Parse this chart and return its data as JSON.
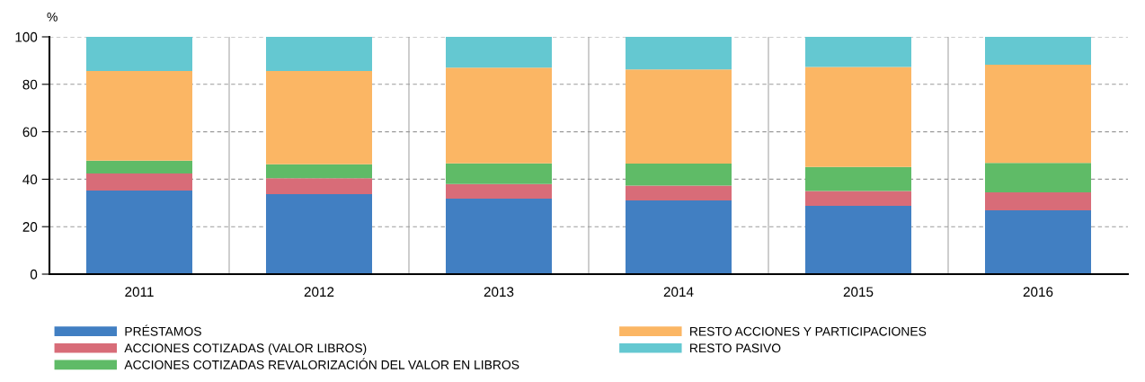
{
  "chart_data": {
    "type": "bar",
    "stacked": true,
    "ylabel": "%",
    "categories": [
      "2011",
      "2012",
      "2013",
      "2014",
      "2015",
      "2016"
    ],
    "series": [
      {
        "name": "PRÉSTAMOS",
        "color": "#417fc2",
        "values": [
          35.2,
          33.7,
          31.8,
          31.1,
          28.8,
          26.9
        ]
      },
      {
        "name": "ACCIONES COTIZADAS (VALOR LIBROS)",
        "color": "#d86c78",
        "values": [
          7.2,
          6.7,
          6.2,
          6.2,
          6.2,
          7.6
        ]
      },
      {
        "name": "ACCIONES COTIZADAS REVALORIZACIÓN DEL VALOR EN LIBROS",
        "color": "#5fbb67",
        "values": [
          5.4,
          5.9,
          8.7,
          9.3,
          10.2,
          12.4
        ]
      },
      {
        "name": "RESTO ACCIONES Y PARTICIPACIONES",
        "color": "#fbb664",
        "values": [
          37.8,
          39.3,
          40.3,
          39.7,
          42.1,
          41.4
        ]
      },
      {
        "name": "RESTO PASIVO",
        "color": "#64c8d1",
        "values": [
          14.4,
          14.4,
          13.0,
          13.7,
          12.7,
          11.7
        ]
      }
    ],
    "ylim": [
      0,
      100
    ],
    "yticks": [
      0,
      20,
      40,
      60,
      80,
      100
    ],
    "grid": "y",
    "legend": "bottom"
  }
}
